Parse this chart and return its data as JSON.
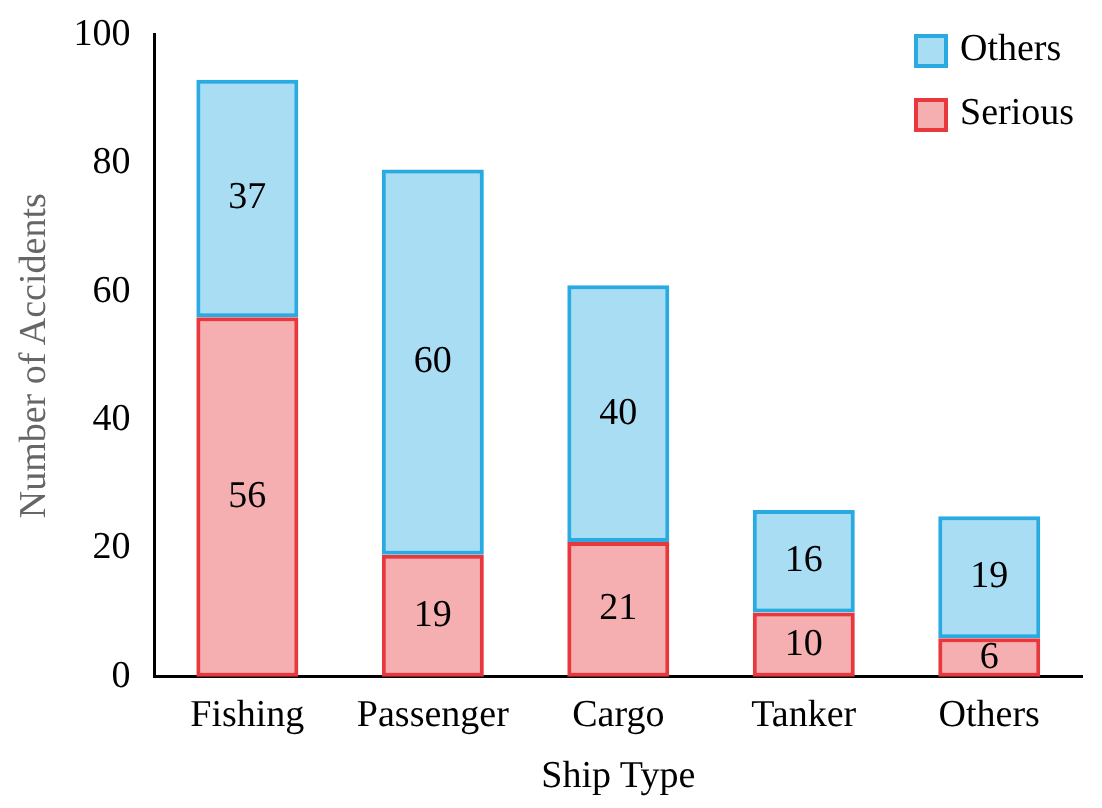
{
  "chart_data": {
    "type": "bar",
    "stacked": true,
    "xlabel": "Ship Type",
    "ylabel": "Number of Accidents",
    "categories": [
      "Fishing",
      "Passenger",
      "Cargo",
      "Tanker",
      "Others"
    ],
    "series": [
      {
        "name": "Serious",
        "color": "#e8383d",
        "values": [
          56,
          19,
          21,
          10,
          6
        ]
      },
      {
        "name": "Others",
        "color": "#29abe2",
        "values": [
          37,
          60,
          40,
          16,
          19
        ]
      }
    ],
    "ylim": [
      0,
      100
    ],
    "yticks": [
      0,
      20,
      40,
      60,
      80,
      100
    ],
    "grid": false,
    "legend": "top right",
    "data_labels": true
  }
}
